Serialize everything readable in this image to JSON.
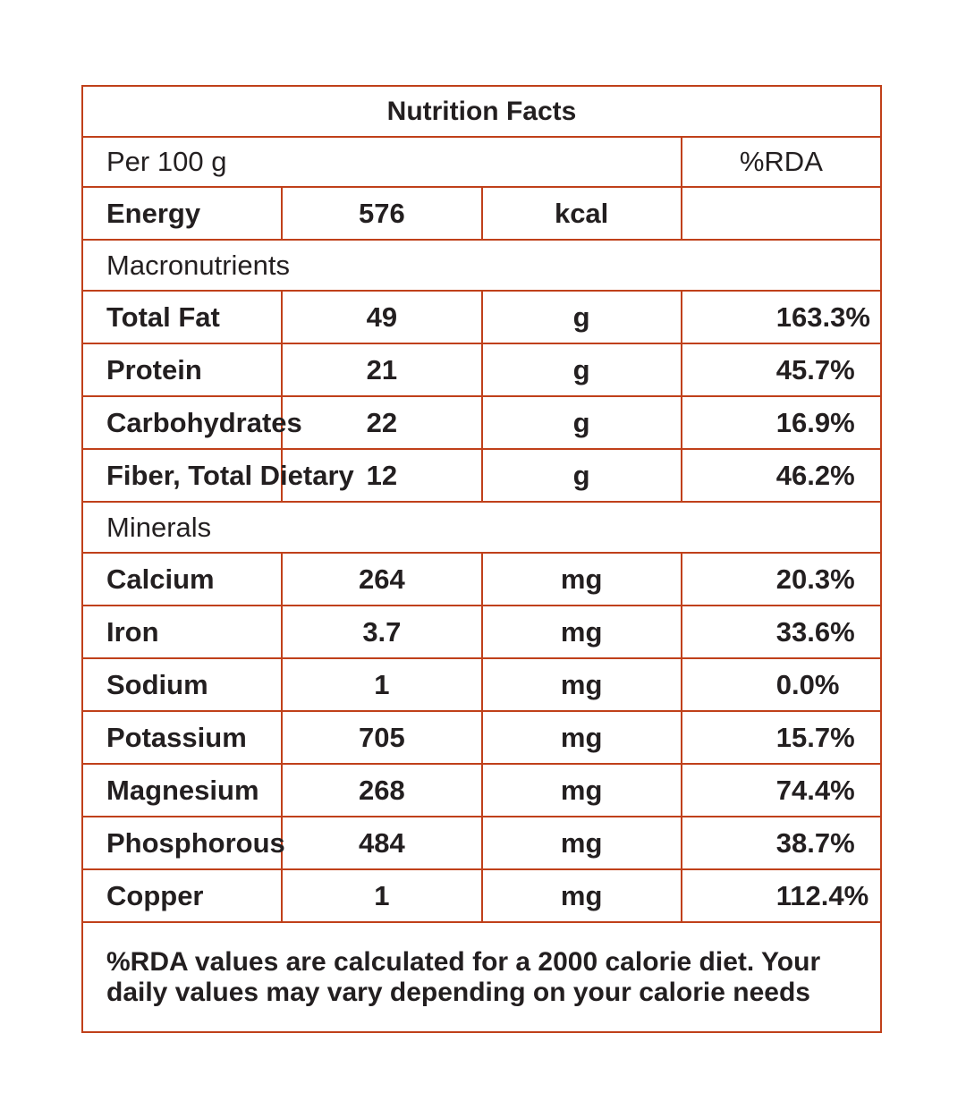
{
  "title": "Nutrition Facts",
  "per": "Per 100 g",
  "rda_header": "%RDA",
  "energy": {
    "name": "Energy",
    "value": "576",
    "unit": "kcal",
    "rda": ""
  },
  "macro_header": "Macronutrients",
  "macros": [
    {
      "name": "Total Fat",
      "value": "49",
      "unit": "g",
      "rda": "163.3%"
    },
    {
      "name": "Protein",
      "value": "21",
      "unit": "g",
      "rda": "45.7%"
    },
    {
      "name": "Carbohydrates",
      "value": "22",
      "unit": "g",
      "rda": "16.9%"
    },
    {
      "name": "Fiber, Total Dietary",
      "value": "12",
      "unit": "g",
      "rda": "46.2%"
    }
  ],
  "minerals_header": "Minerals",
  "minerals": [
    {
      "name": "Calcium",
      "value": "264",
      "unit": "mg",
      "rda": "20.3%"
    },
    {
      "name": "Iron",
      "value": "3.7",
      "unit": "mg",
      "rda": "33.6%"
    },
    {
      "name": "Sodium",
      "value": "1",
      "unit": "mg",
      "rda": "0.0%"
    },
    {
      "name": "Potassium",
      "value": "705",
      "unit": "mg",
      "rda": "15.7%"
    },
    {
      "name": "Magnesium",
      "value": "268",
      "unit": "mg",
      "rda": "74.4%"
    },
    {
      "name": "Phosphorous",
      "value": "484",
      "unit": "mg",
      "rda": "38.7%"
    },
    {
      "name": "Copper",
      "value": "1",
      "unit": "mg",
      "rda": "112.4%"
    }
  ],
  "footnote": "%RDA values are calculated for a 2000 calorie diet. Your daily values may vary depending on your calorie needs",
  "colors": {
    "border": "#c0401a",
    "text": "#231f20"
  }
}
